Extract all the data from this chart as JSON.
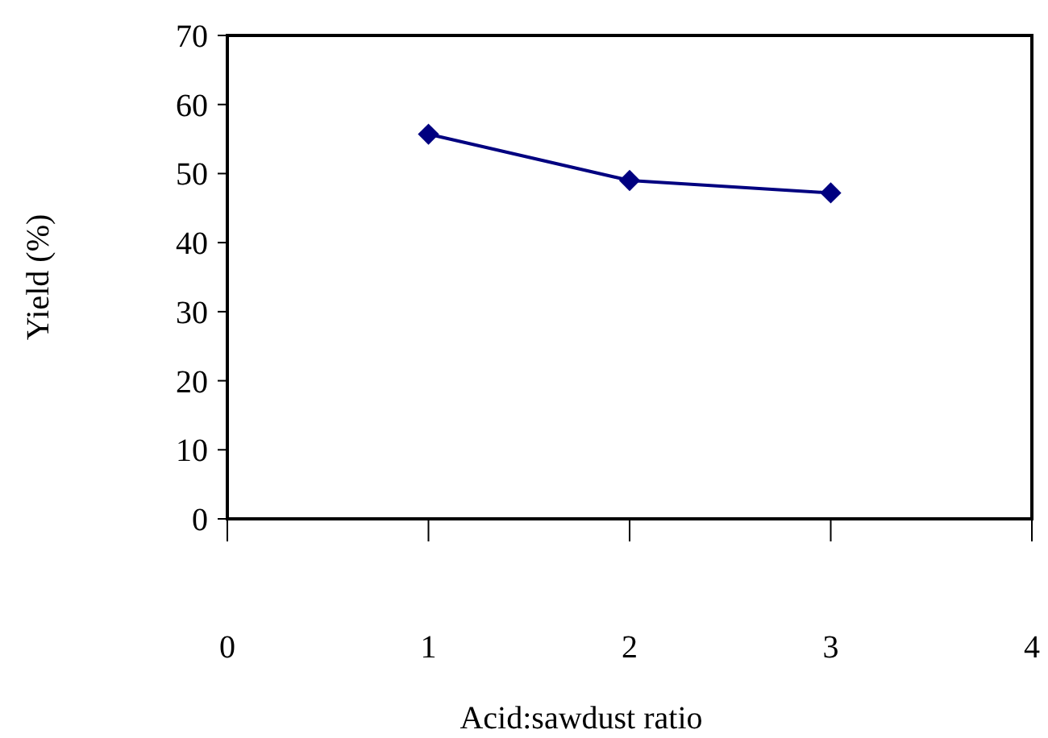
{
  "chart_data": {
    "type": "line",
    "xlabel": "Acid:sawdust ratio",
    "ylabel": "Yield (%)",
    "x": [
      1,
      2,
      3
    ],
    "series": [
      {
        "color": "#000080",
        "values": [
          55.7,
          49,
          47.2
        ]
      }
    ],
    "xlim": [
      0,
      4
    ],
    "xticks": [
      0,
      1,
      2,
      3,
      4
    ],
    "ylim": [
      0,
      70
    ],
    "yticks": [
      0,
      10,
      20,
      30,
      40,
      50,
      60,
      70
    ],
    "marker": "diamond",
    "grid": false
  }
}
